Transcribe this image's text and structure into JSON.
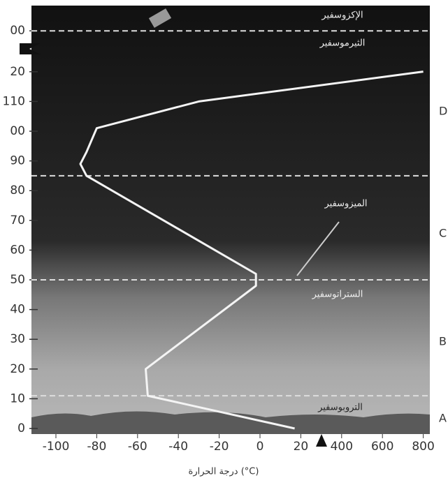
{
  "chart_data": {
    "type": "line",
    "x_label": "درجة الحرارة (°C)",
    "x": [
      17,
      -55,
      -56,
      -2,
      -2,
      -85,
      -88,
      -85,
      -80,
      -30,
      800
    ],
    "values": [
      0,
      11,
      20,
      48,
      52,
      85,
      89,
      93,
      101,
      110,
      121
    ],
    "color": "#f4f4f4",
    "xlim": [
      -110,
      810
    ],
    "xticks": [
      -100,
      -80,
      -60,
      -40,
      -20,
      0,
      20,
      400,
      600,
      800
    ],
    "ylim": [
      -1,
      520
    ],
    "yticks": [
      0,
      10,
      20,
      30,
      40,
      50,
      60,
      70,
      80,
      90,
      {
        "value": 100,
        "label": "00"
      },
      110,
      {
        "value": 120,
        "label": "20"
      },
      {
        "value": 500,
        "label": "00"
      }
    ],
    "boundaries": [
      11,
      50,
      85,
      500
    ],
    "layer_labels": [
      "الإكزوسفير",
      "الثيرموسفير",
      "الميزوسفير",
      "الستراتوسفير",
      "التروبوسفير"
    ],
    "layer_letters": [
      "D",
      "C",
      "B",
      "A"
    ]
  }
}
